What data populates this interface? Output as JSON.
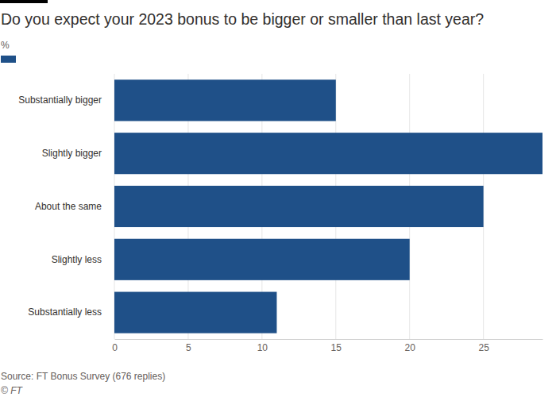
{
  "chart_data": {
    "type": "bar",
    "title": "Do you expect your 2023 bonus to be bigger or smaller than last year?",
    "subtitle": "%",
    "annotations": [
      "Source: FT Bonus Survey (676 replies)",
      "© FT"
    ],
    "categories": [
      "Substantially bigger",
      "Slightly bigger",
      "About the same",
      "Slightly less",
      "Substantially less"
    ],
    "values": [
      15,
      29,
      25,
      20,
      11
    ],
    "color": "#1f5088",
    "orientation": "horizontal",
    "xlim": [
      0,
      29
    ],
    "xticks": [
      0,
      5,
      10,
      15,
      20,
      25
    ],
    "grid": true
  }
}
